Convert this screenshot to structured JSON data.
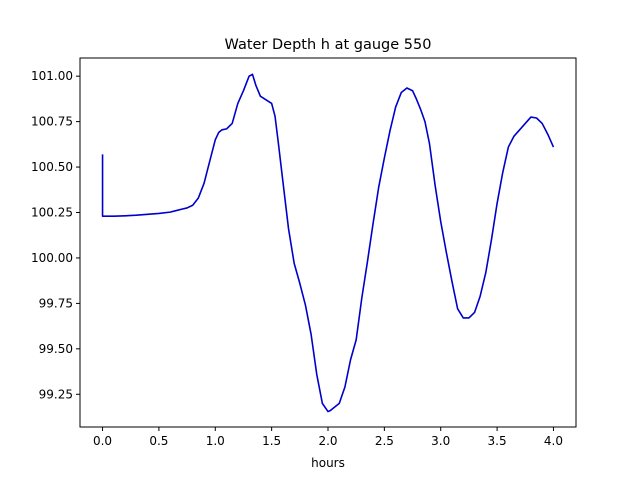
{
  "chart_data": {
    "type": "line",
    "title": "Water Depth h at gauge 550",
    "xlabel": "hours",
    "ylabel": "",
    "xlim": [
      -0.2,
      4.2
    ],
    "ylim": [
      99.07,
      101.1
    ],
    "xticks": [
      0.0,
      0.5,
      1.0,
      1.5,
      2.0,
      2.5,
      3.0,
      3.5,
      4.0
    ],
    "xtick_labels": [
      "0.0",
      "0.5",
      "1.0",
      "1.5",
      "2.0",
      "2.5",
      "3.0",
      "3.5",
      "4.0"
    ],
    "yticks": [
      99.25,
      99.5,
      99.75,
      100.0,
      100.25,
      100.5,
      100.75,
      101.0
    ],
    "ytick_labels": [
      "99.25",
      "99.50",
      "99.75",
      "100.00",
      "100.25",
      "100.50",
      "100.75",
      "101.00"
    ],
    "grid": false,
    "series": [
      {
        "color": "#0000cc",
        "x": [
          0.0,
          0.0,
          0.0,
          0.1,
          0.2,
          0.3,
          0.4,
          0.5,
          0.6,
          0.65,
          0.7,
          0.75,
          0.8,
          0.85,
          0.9,
          0.95,
          1.0,
          1.03,
          1.06,
          1.1,
          1.15,
          1.2,
          1.25,
          1.3,
          1.33,
          1.36,
          1.4,
          1.45,
          1.5,
          1.53,
          1.56,
          1.6,
          1.65,
          1.7,
          1.75,
          1.8,
          1.85,
          1.9,
          1.95,
          2.0,
          2.02,
          2.05,
          2.1,
          2.15,
          2.2,
          2.25,
          2.3,
          2.35,
          2.4,
          2.45,
          2.5,
          2.55,
          2.6,
          2.65,
          2.7,
          2.75,
          2.78,
          2.82,
          2.86,
          2.9,
          2.95,
          3.0,
          3.05,
          3.1,
          3.15,
          3.2,
          3.25,
          3.3,
          3.35,
          3.4,
          3.45,
          3.5,
          3.55,
          3.6,
          3.65,
          3.7,
          3.75,
          3.8,
          3.85,
          3.9,
          3.95,
          4.0
        ],
        "y": [
          100.57,
          100.4,
          100.23,
          100.23,
          100.232,
          100.235,
          100.24,
          100.245,
          100.252,
          100.26,
          100.268,
          100.275,
          100.29,
          100.33,
          100.41,
          100.53,
          100.65,
          100.69,
          100.705,
          100.71,
          100.74,
          100.85,
          100.92,
          101.0,
          101.01,
          100.95,
          100.89,
          100.87,
          100.85,
          100.78,
          100.63,
          100.42,
          100.16,
          99.97,
          99.86,
          99.74,
          99.58,
          99.36,
          99.2,
          99.155,
          99.16,
          99.175,
          99.2,
          99.29,
          99.44,
          99.55,
          99.78,
          99.98,
          100.19,
          100.39,
          100.55,
          100.7,
          100.83,
          100.91,
          100.935,
          100.92,
          100.88,
          100.82,
          100.75,
          100.63,
          100.4,
          100.2,
          100.03,
          99.87,
          99.72,
          99.67,
          99.67,
          99.7,
          99.79,
          99.92,
          100.1,
          100.3,
          100.47,
          100.61,
          100.67,
          100.705,
          100.74,
          100.775,
          100.77,
          100.74,
          100.68,
          100.61
        ]
      }
    ]
  }
}
